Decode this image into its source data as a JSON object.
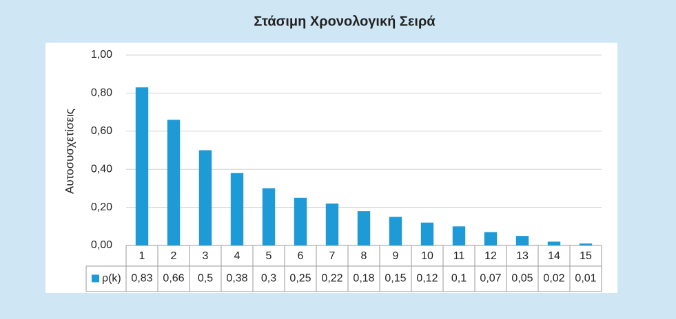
{
  "chart_data": {
    "type": "bar",
    "title": "Στάσιμη Χρονολογική Σειρά",
    "y_label": "Αυτοσυσχετίσεις",
    "categories": [
      "1",
      "2",
      "3",
      "4",
      "5",
      "6",
      "7",
      "8",
      "9",
      "10",
      "11",
      "12",
      "13",
      "14",
      "15"
    ],
    "series": [
      {
        "name": "ρ(k)",
        "color": "#1e9ad6",
        "values": [
          0.83,
          0.66,
          0.5,
          0.38,
          0.3,
          0.25,
          0.22,
          0.18,
          0.15,
          0.12,
          0.1,
          0.07,
          0.05,
          0.02,
          0.01
        ],
        "value_labels": [
          "0,83",
          "0,66",
          "0,5",
          "0,38",
          "0,3",
          "0,25",
          "0,22",
          "0,18",
          "0,15",
          "0,12",
          "0,1",
          "0,07",
          "0,05",
          "0,02",
          "0,01"
        ]
      }
    ],
    "ylim": [
      0,
      1
    ],
    "yticks": [
      {
        "value": 0,
        "label": "0,00"
      },
      {
        "value": 0.2,
        "label": "0,20"
      },
      {
        "value": 0.4,
        "label": "0,40"
      },
      {
        "value": 0.6,
        "label": "0,60"
      },
      {
        "value": 0.8,
        "label": "0,80"
      },
      {
        "value": 1,
        "label": "1,00"
      }
    ],
    "grid": true
  }
}
